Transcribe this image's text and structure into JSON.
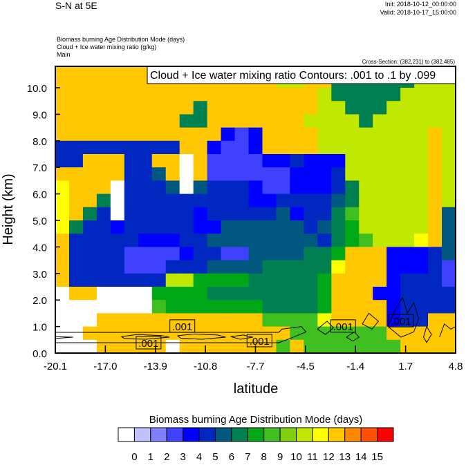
{
  "header": {
    "title": "S-N at 5E",
    "init": "Init: 2018-10-12_00:00:00",
    "valid": "Valid: 2018-10-17_15:00:00",
    "field_lines": [
      "Biomass burning Age Distribution Mode   (days)",
      "Cloud + Ice water mixing ratio   (g/kg)",
      "Main"
    ],
    "cross_section": "Cross-Section: (382,231) to (382,485)"
  },
  "chart_data": {
    "type": "heatmap",
    "title": "S-N at 5E",
    "xlabel": "latitude",
    "ylabel": "Height (km)",
    "xlim": [
      -20.1,
      4.8
    ],
    "ylim": [
      0,
      10.8
    ],
    "xticks": [
      "-20.1",
      "-17.0",
      "-13.9",
      "-10.8",
      "-7.7",
      "-4.5",
      "-1.4",
      "1.7",
      "4.8"
    ],
    "yticks": [
      "0.0",
      "1.0",
      "2.0",
      "3.0",
      "4.0",
      "5.0",
      "6.0",
      "7.0",
      "8.0",
      "9.0",
      "10.0"
    ],
    "grid_note": "rows from top (11 km) down in 0.5 km steps; chars are colorbar bin indices 0-g",
    "grid": [
      "dddddddddddddddddddd777777bbb",
      "ddddddddddddddddbbdd777777bbb",
      "dddddddddddddddddddb77777bbbb",
      "dddddddddd7ddddddddbb777bbbbb",
      "ddddddddd77dddddddbbbb7bbbbbb",
      "dddddddddddd434ddddbbbbbbbbdb",
      "555555555dd4334ddddbbbbbbbbdb",
      "55ddd55dd0d3333445444bbbbbbdb",
      "ddddd556d0d3333334445bbbbbbdb",
      "cddd055560655543344457bbbbbdb",
      "cdd7055555555544555567bbbbbdb",
      "cd75055555455555645579bbbbbd6",
      "c755455555446666665678bbbbbd6",
      "d5555544455666666665789bbbcd6",
      "d55553333455336666778ddd44456",
      "d5555333555666677777cddd44453",
      "d5555555bb8888777778dddd45553",
      "0dd00008888777777778ddd445555",
      "00000009888888877778dddd45555",
      "000dddddddddddd9999cdddd455dd",
      "00ddddddddddddddd9999999ddddd",
      "000ddddd0ddddddd9d9999999dddd"
    ],
    "contour_field": "Cloud + Ice water mixing ratio",
    "contour_legend": "Cloud + Ice water mixing ratio Contours: .001 to .1 by .099",
    "contour_labels": [
      {
        "text": ".001",
        "lat": -12.2,
        "km": 1.02
      },
      {
        "text": ".001",
        "lat": -14.3,
        "km": 0.39
      },
      {
        "text": ".001",
        "lat": -7.4,
        "km": 0.47
      },
      {
        "text": ".001",
        "lat": -2.2,
        "km": 1.02
      },
      {
        "text": ".001",
        "lat": 1.4,
        "km": 1.22
      }
    ],
    "contours": [
      [
        [
          -20.1,
          0.78
        ],
        [
          -6.2,
          0.78
        ],
        [
          -6.0,
          0.9
        ],
        [
          -4.8,
          1.0
        ],
        [
          -4.5,
          0.8
        ],
        [
          -5.5,
          0.55
        ],
        [
          -6.2,
          0.39
        ],
        [
          -20.1,
          0.39
        ]
      ],
      [
        [
          -20.1,
          0.62
        ],
        [
          -19.0,
          0.6
        ],
        [
          -20.1,
          0.55
        ]
      ],
      [
        [
          -16.0,
          0.62
        ],
        [
          -15.0,
          0.7
        ],
        [
          -13.5,
          0.66
        ],
        [
          -13.0,
          0.6
        ],
        [
          -14.5,
          0.52
        ],
        [
          -15.8,
          0.55
        ],
        [
          -16.0,
          0.62
        ]
      ],
      [
        [
          -12.5,
          0.65
        ],
        [
          -11.5,
          0.72
        ],
        [
          -10.0,
          0.68
        ],
        [
          -9.5,
          0.6
        ],
        [
          -11.0,
          0.52
        ],
        [
          -12.3,
          0.56
        ],
        [
          -12.5,
          0.65
        ]
      ],
      [
        [
          -9.2,
          0.62
        ],
        [
          -8.4,
          0.68
        ],
        [
          -7.8,
          0.6
        ],
        [
          -8.6,
          0.52
        ],
        [
          -9.2,
          0.62
        ]
      ],
      [
        [
          -3.8,
          0.9
        ],
        [
          -3.2,
          1.2
        ],
        [
          -2.8,
          0.95
        ],
        [
          -3.3,
          0.7
        ],
        [
          -3.8,
          0.9
        ]
      ],
      [
        [
          -1.0,
          1.1
        ],
        [
          -0.6,
          1.5
        ],
        [
          0.0,
          1.2
        ],
        [
          -0.4,
          0.9
        ],
        [
          -1.0,
          1.1
        ]
      ],
      [
        [
          0.6,
          1.0
        ],
        [
          1.0,
          1.6
        ],
        [
          1.5,
          2.1
        ],
        [
          1.8,
          1.5
        ],
        [
          2.2,
          1.9
        ],
        [
          2.5,
          1.3
        ],
        [
          2.2,
          0.8
        ],
        [
          1.4,
          0.6
        ],
        [
          0.6,
          1.0
        ]
      ],
      [
        [
          2.8,
          0.6
        ],
        [
          3.0,
          1.0
        ],
        [
          3.3,
          0.7
        ],
        [
          3.0,
          0.4
        ],
        [
          2.8,
          0.6
        ]
      ],
      [
        [
          3.8,
          0.6
        ],
        [
          4.1,
          1.1
        ],
        [
          4.5,
          0.9
        ],
        [
          4.8,
          1.0
        ]
      ],
      [
        [
          -2.0,
          0.6
        ],
        [
          -1.5,
          0.8
        ],
        [
          -1.2,
          0.6
        ],
        [
          -1.6,
          0.45
        ],
        [
          -2.0,
          0.6
        ]
      ]
    ]
  },
  "colorbar": {
    "title": "Biomass burning Age Distribution Mode  (days)",
    "colors": [
      "#ffffff",
      "#c0c0ff",
      "#8080ff",
      "#4040ff",
      "#0000ff",
      "#0028c0",
      "#005880",
      "#008050",
      "#00a818",
      "#40c020",
      "#80d010",
      "#c0e800",
      "#ffff00",
      "#ffc800",
      "#ff8800",
      "#ff5000",
      "#ff0000"
    ],
    "labels": [
      "0",
      "1",
      "2",
      "3",
      "4",
      "5",
      "6",
      "7",
      "8",
      "9",
      "10",
      "11",
      "12",
      "13",
      "14",
      "15"
    ]
  }
}
